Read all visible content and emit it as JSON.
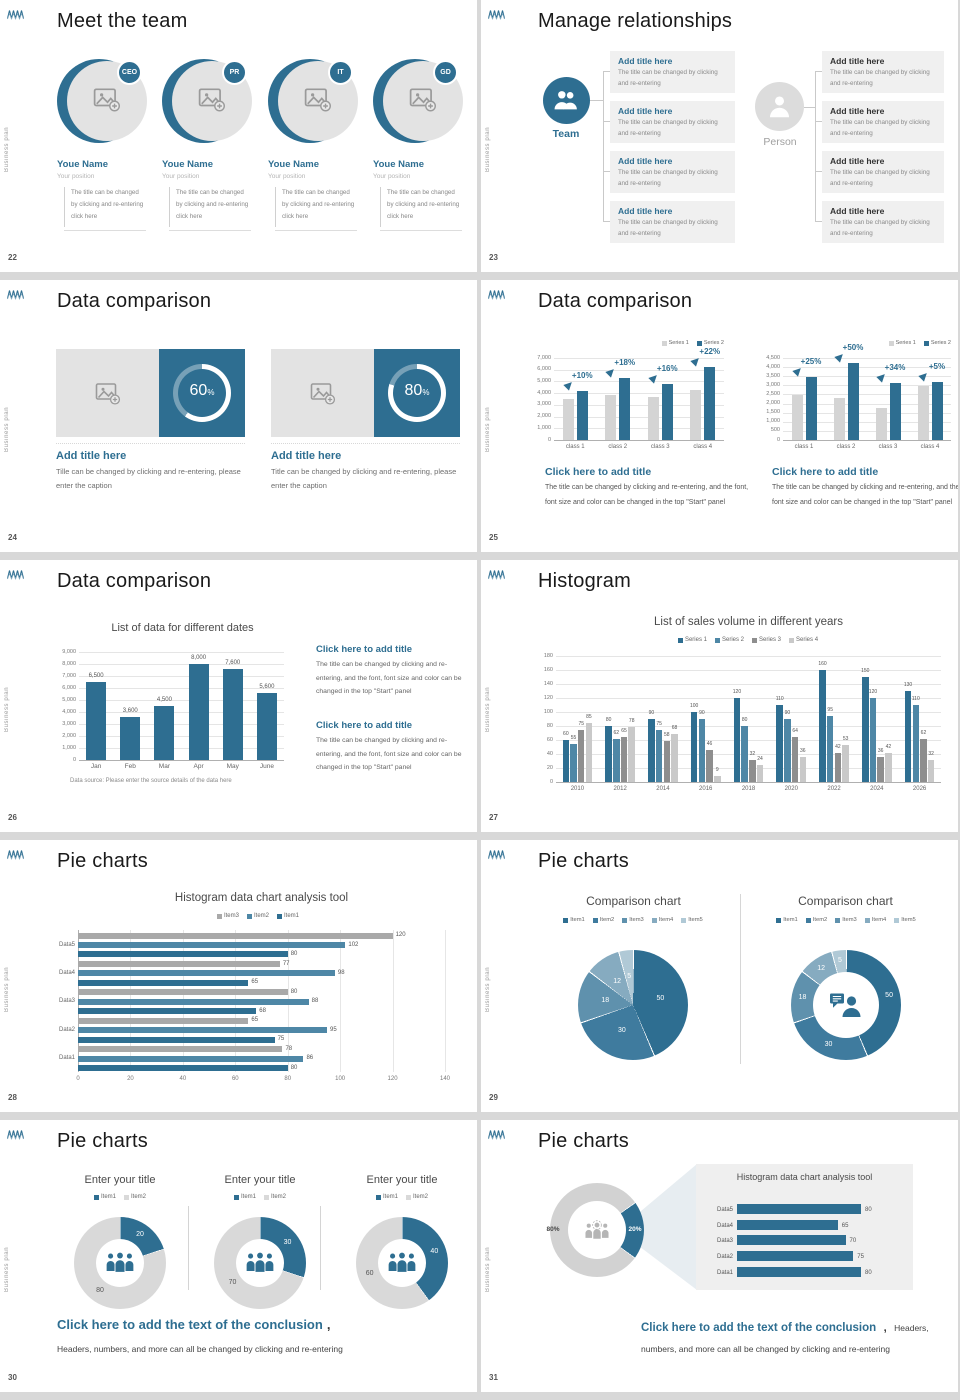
{
  "colors": {
    "primary_blue": "#2e6e91",
    "mid_blue": "#4e87a6",
    "bar_light_gray": "#d4d4d4",
    "bar_dark_gray": "#8e8e8e",
    "bar_lighter_gray": "#c9c9c9",
    "item_gray": "#a9a9a9",
    "donut_gray": "#d9d9d9",
    "box_bg": "#efefef",
    "pie_palette": [
      "#2e6e91",
      "#3f7b9e",
      "#5f91ad",
      "#86abc0",
      "#b0c9d6"
    ]
  },
  "common": {
    "sidebar_text": "Business plan",
    "logo": "mountain-zigzag-logo"
  },
  "slides": {
    "s22": {
      "number": "22",
      "title": "Meet the team",
      "members": [
        {
          "badge": "CEO",
          "name": "Youe Name",
          "position": "Your position",
          "body": "The title can be changed by clicking and re-entering click here"
        },
        {
          "badge": "PR",
          "name": "Youe Name",
          "position": "Your position",
          "body": "The title can be changed by clicking and re-entering click here"
        },
        {
          "badge": "IT",
          "name": "Youe Name",
          "position": "Your position",
          "body": "The title can be changed by clicking and re-entering click here"
        },
        {
          "badge": "GD",
          "name": "Youe Name",
          "position": "Your position",
          "body": "The title can be changed by clicking and re-entering click here"
        }
      ]
    },
    "s23": {
      "number": "23",
      "title": "Manage relationships",
      "team_label": "Team",
      "person_label": "Person",
      "box_title": "Add title here",
      "box_body": "The title can be changed by clicking and re-entering",
      "left_box_count": 4,
      "right_box_count": 4
    },
    "s24": {
      "number": "24",
      "title": "Data comparison",
      "cards": [
        {
          "percent": "60",
          "unit": "%",
          "heading": "Add title here",
          "caption": "Tille can be changed by clicking and re-entering, please enter the caption"
        },
        {
          "percent": "80",
          "unit": "%",
          "heading": "Add title here",
          "caption": "Title can be changed by clicking and re-entering, please enter the caption"
        }
      ]
    },
    "s25": {
      "number": "25",
      "title": "Data comparison",
      "blocks": [
        {
          "heading": "Click here to add title",
          "body": "The title can be changed by clicking and re-entering, and the font, font size and color can be changed in the top \"Start\" panel"
        },
        {
          "heading": "Click here to add title",
          "body": "The title can be changed by clicking and re-entering, and the font, font size and color can be changed in the top \"Start\" panel"
        }
      ]
    },
    "s26": {
      "number": "26",
      "title": "Data comparison",
      "blocks": [
        {
          "heading": "Click here to add title",
          "body": "The title can be changed by clicking and re-entering, and the font, font size and color can be changed in the top \"Start\" panel"
        },
        {
          "heading": "Click here to add title",
          "body": "The title can be changed by clicking and re-entering, and the font, font size and color can be changed in the top \"Start\" panel"
        }
      ]
    },
    "s27": {
      "number": "27",
      "title": "Histogram"
    },
    "s28": {
      "number": "28",
      "title": "Pie charts"
    },
    "s29": {
      "number": "29",
      "title": "Pie charts"
    },
    "s30": {
      "number": "30",
      "title": "Pie charts",
      "conclusion": {
        "heading": "Click here to add the text of the conclusion",
        "separator": ",",
        "body": "Headers, numbers, and more can all be changed by clicking and re-entering"
      }
    },
    "s31": {
      "number": "31",
      "title": "Pie charts",
      "conclusion": {
        "heading": "Click here to add the text of the conclusion",
        "separator": ",",
        "body": "Headers, numbers, and more can all be changed by clicking and re-entering"
      }
    }
  },
  "chart_data": [
    {
      "id": "s25_left",
      "slide": "25",
      "type": "bar",
      "categories": [
        "class 1",
        "class 2",
        "class 3",
        "class 4"
      ],
      "series": [
        {
          "name": "Series 1",
          "values": [
            3500,
            3800,
            3700,
            4300
          ]
        },
        {
          "name": "Series 2",
          "values": [
            4200,
            5300,
            4800,
            6200
          ]
        }
      ],
      "annotations": [
        "+10%",
        "+18%",
        "+16%",
        "+22%"
      ],
      "ylim": [
        0,
        7000
      ],
      "ystep": 1000,
      "legend": [
        "Series 1",
        "Series 2"
      ],
      "legend_position": "top-right"
    },
    {
      "id": "s25_right",
      "slide": "25",
      "type": "bar",
      "categories": [
        "class 1",
        "class 2",
        "class 3",
        "class 4"
      ],
      "series": [
        {
          "name": "Series 1",
          "values": [
            2450,
            2300,
            1750,
            2950
          ]
        },
        {
          "name": "Series 2",
          "values": [
            3450,
            4200,
            3150,
            3200
          ]
        }
      ],
      "annotations": [
        "+25%",
        "+50%",
        "+34%",
        "+5%"
      ],
      "ylim": [
        0,
        4500
      ],
      "ystep": 500,
      "legend": [
        "Series 1",
        "Series 2"
      ],
      "legend_position": "top-right"
    },
    {
      "id": "s26",
      "slide": "26",
      "type": "bar",
      "title": "List of data for different dates",
      "categories": [
        "Jan",
        "Feb",
        "Mar",
        "Apr",
        "May",
        "June"
      ],
      "values": [
        6500,
        3600,
        4500,
        8000,
        7600,
        5600
      ],
      "value_labels": [
        "6,500",
        "3,600",
        "4,500",
        "8,000",
        "7,600",
        "5,600"
      ],
      "ylim": [
        0,
        9000
      ],
      "ystep": 1000,
      "footnote": "Data source: Please enter the source details of the data here"
    },
    {
      "id": "s27",
      "slide": "27",
      "type": "bar",
      "title": "List of sales volume in different years",
      "categories": [
        "2010",
        "2012",
        "2014",
        "2016",
        "2018",
        "2020",
        "2022",
        "2024",
        "2026"
      ],
      "series": [
        {
          "name": "Series 1",
          "values": [
            60,
            80,
            90,
            100,
            120,
            110,
            160,
            150,
            130
          ]
        },
        {
          "name": "Series 2",
          "values": [
            55,
            62,
            75,
            90,
            80,
            90,
            95,
            120,
            110
          ]
        },
        {
          "name": "Series 3",
          "values": [
            75,
            65,
            58,
            46,
            32,
            64,
            42,
            36,
            62
          ]
        },
        {
          "name": "Series 4",
          "values": [
            85,
            78,
            68,
            9,
            24,
            36,
            53,
            42,
            32
          ]
        }
      ],
      "ylim": [
        0,
        180
      ],
      "ystep": 20,
      "legend": [
        "Series 1",
        "Series 2",
        "Series 3",
        "Series 4"
      ],
      "legend_position": "top-center"
    },
    {
      "id": "s28",
      "slide": "28",
      "type": "bar-horizontal",
      "title": "Histogram data chart analysis tool",
      "categories": [
        "Data1",
        "Data2",
        "Data3",
        "Data4",
        "Data5"
      ],
      "series": [
        {
          "name": "Item3",
          "values": [
            78,
            65,
            80,
            77,
            120
          ]
        },
        {
          "name": "Item2",
          "values": [
            86,
            95,
            88,
            98,
            102
          ]
        },
        {
          "name": "Item1",
          "values": [
            80,
            75,
            68,
            65,
            80
          ]
        }
      ],
      "xlim": [
        0,
        140
      ],
      "xstep": 20,
      "legend": [
        "Item3",
        "Item2",
        "Item1"
      ],
      "legend_position": "top-center"
    },
    {
      "id": "s29_left",
      "slide": "29",
      "type": "pie",
      "title": "Comparison chart",
      "labels": [
        "Item1",
        "Item2",
        "Item3",
        "Item4",
        "Item5"
      ],
      "values": [
        50,
        30,
        18,
        12,
        5
      ]
    },
    {
      "id": "s29_right",
      "slide": "29",
      "type": "donut",
      "title": "Comparison chart",
      "labels": [
        "Item1",
        "Item2",
        "Item3",
        "Item4",
        "Item5"
      ],
      "values": [
        50,
        30,
        18,
        12,
        5
      ]
    },
    {
      "id": "s30_1",
      "slide": "30",
      "type": "donut",
      "title": "Enter your title",
      "labels": [
        "Item1",
        "Item2"
      ],
      "values": [
        20,
        80
      ]
    },
    {
      "id": "s30_2",
      "slide": "30",
      "type": "donut",
      "title": "Enter your title",
      "labels": [
        "Item1",
        "Item2"
      ],
      "values": [
        30,
        70
      ]
    },
    {
      "id": "s30_3",
      "slide": "30",
      "type": "donut",
      "title": "Enter your title",
      "labels": [
        "Item1",
        "Item2"
      ],
      "values": [
        40,
        60
      ]
    },
    {
      "id": "s31_donut",
      "slide": "31",
      "type": "donut",
      "labels": [
        "Item1",
        "Item2"
      ],
      "values": [
        20,
        80
      ],
      "value_labels": [
        "20%",
        "80%"
      ]
    },
    {
      "id": "s31_bars",
      "slide": "31",
      "type": "bar-horizontal",
      "title": "Histogram data chart analysis tool",
      "categories": [
        "Data1",
        "Data2",
        "Data3",
        "Data4",
        "Data5"
      ],
      "values": [
        80,
        75,
        70,
        65,
        80
      ],
      "xlim": [
        0,
        90
      ]
    }
  ]
}
